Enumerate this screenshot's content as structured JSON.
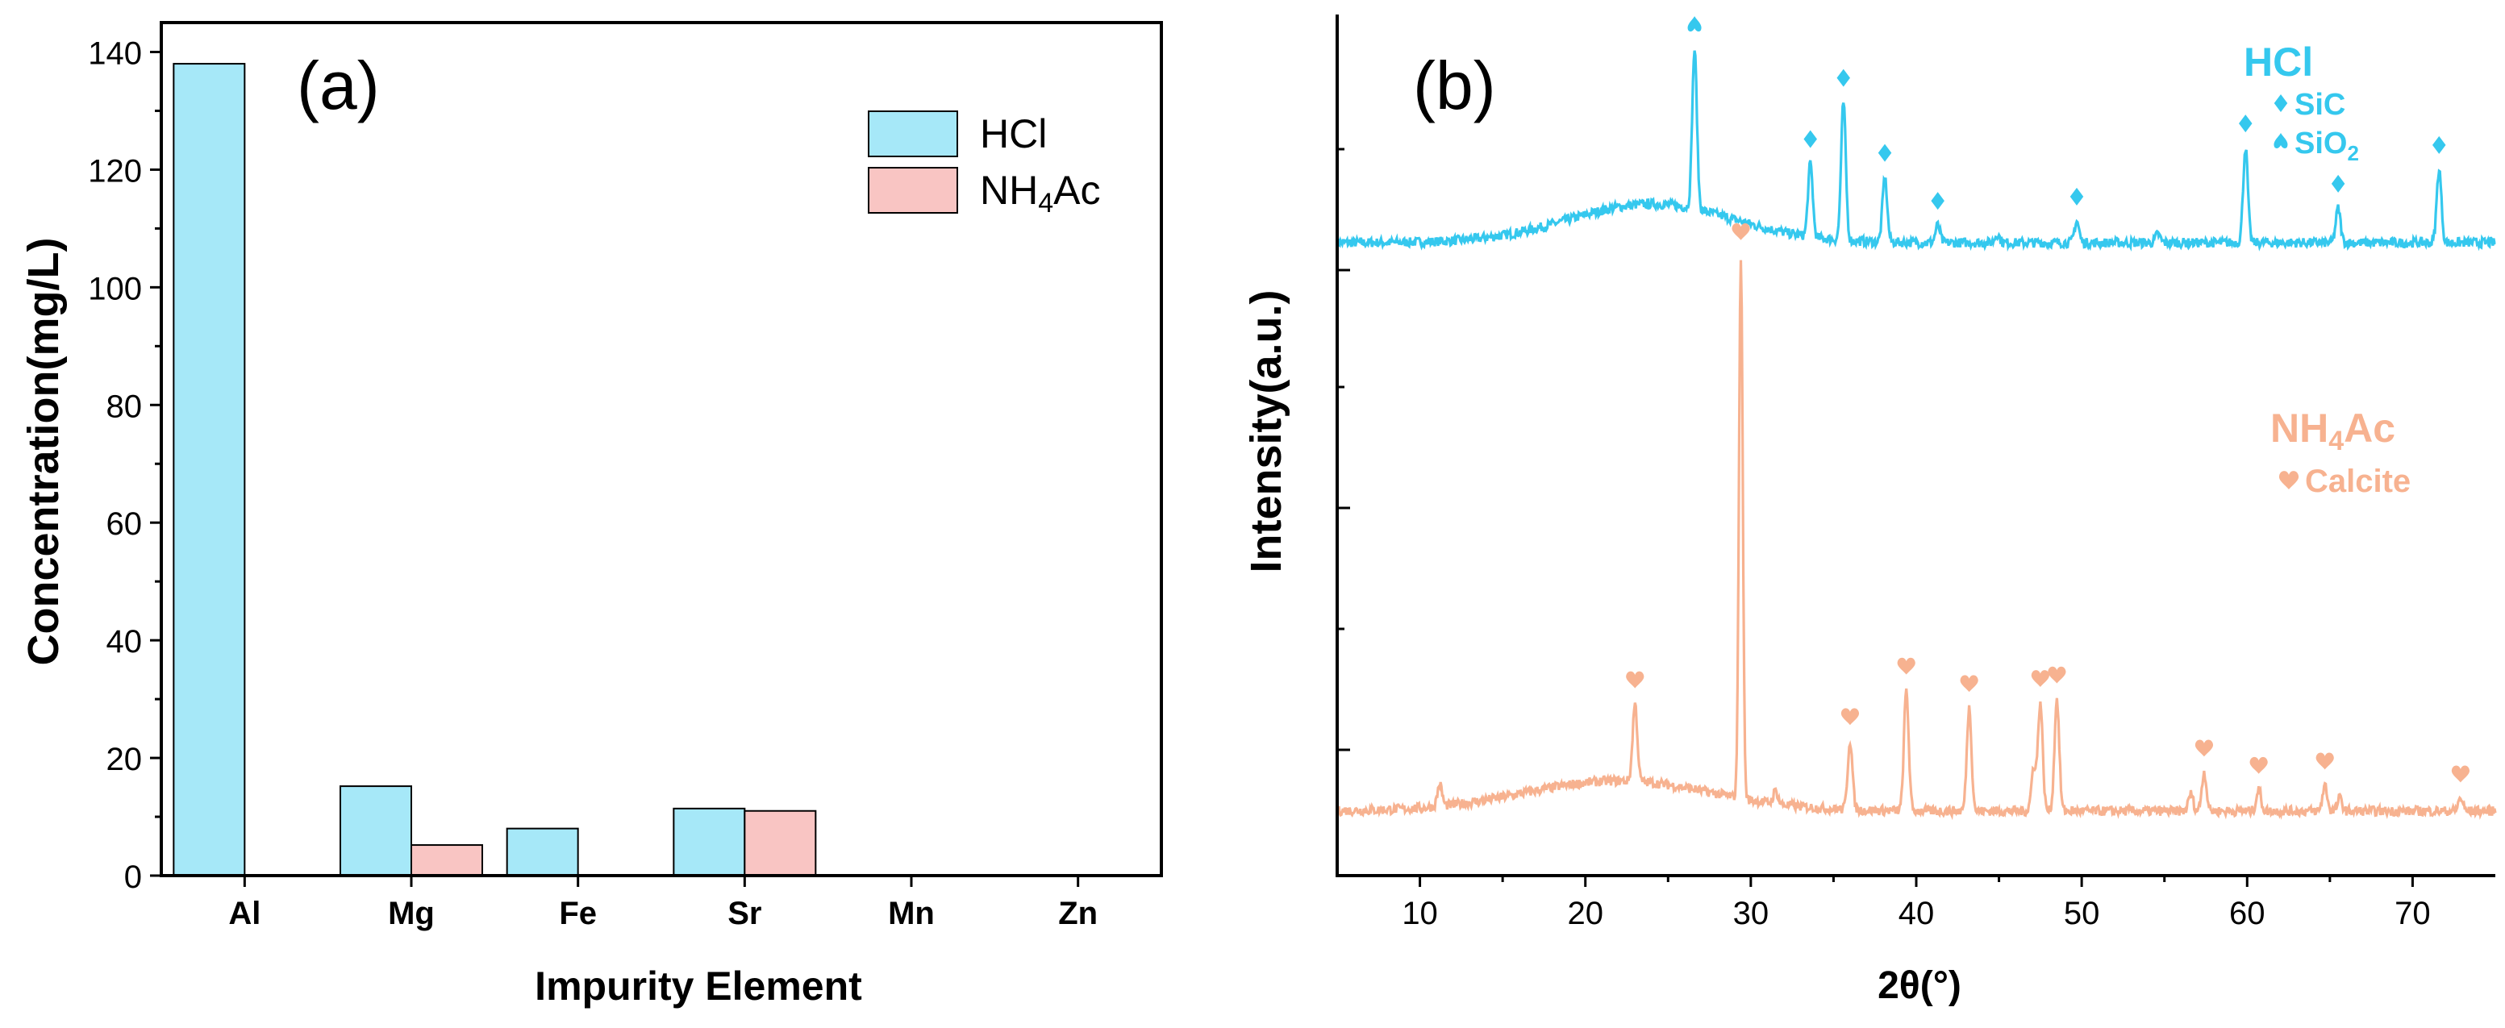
{
  "colors": {
    "hcl": "#35c8ee",
    "hcl_fill": "#a6e8f8",
    "nh4ac": "#f7b290",
    "nh4ac_fill": "#f9c5c3",
    "axis": "#000000"
  },
  "chart_data": [
    {
      "type": "bar",
      "panel_label": "(a)",
      "xlabel": "Impurity Element",
      "ylabel": "Concentration(mg/L)",
      "categories": [
        "Al",
        "Mg",
        "Fe",
        "Sr",
        "Mn",
        "Zn"
      ],
      "ylim": [
        0,
        145
      ],
      "yticks": [
        "0",
        "20",
        "40",
        "60",
        "80",
        "100",
        "120",
        "140"
      ],
      "ytick_values": [
        0,
        20,
        40,
        60,
        80,
        100,
        120,
        140
      ],
      "legend_position": "top-right",
      "series": [
        {
          "name": "HCl",
          "legend_label": "HCl",
          "values": [
            138,
            15.2,
            8,
            11.4,
            0,
            0
          ]
        },
        {
          "name": "NH4Ac",
          "legend_label": "NH",
          "legend_sub": "4",
          "legend_suffix": "Ac",
          "values": [
            0,
            5.2,
            0,
            11,
            0,
            0
          ]
        }
      ]
    },
    {
      "type": "line",
      "panel_label": "(b)",
      "xlabel": "2θ(°)",
      "ylabel": "Intensity(a.u.)",
      "xlim": [
        5,
        75
      ],
      "xticks": [
        "10",
        "20",
        "30",
        "40",
        "50",
        "60",
        "70"
      ],
      "xtick_values": [
        10,
        20,
        30,
        40,
        50,
        60,
        70
      ],
      "series": [
        {
          "name": "HCl",
          "label": "HCl",
          "baseline": 0.735,
          "hump": {
            "center": 24,
            "width": 7,
            "height": 0.045
          },
          "peaks": [
            {
              "x": 26.6,
              "h": 0.185,
              "marker": "spade"
            },
            {
              "x": 33.6,
              "h": 0.085,
              "marker": "diamond"
            },
            {
              "x": 35.6,
              "h": 0.16,
              "marker": "diamond"
            },
            {
              "x": 38.1,
              "h": 0.075,
              "marker": "diamond"
            },
            {
              "x": 41.3,
              "h": 0.02,
              "marker": "diamond"
            },
            {
              "x": 44.9,
              "h": 0.01,
              "marker": null
            },
            {
              "x": 49.7,
              "h": 0.025,
              "marker": "diamond"
            },
            {
              "x": 54.6,
              "h": 0.01,
              "marker": null
            },
            {
              "x": 59.9,
              "h": 0.11,
              "marker": "diamond"
            },
            {
              "x": 65.5,
              "h": 0.04,
              "marker": "diamond"
            },
            {
              "x": 71.6,
              "h": 0.085,
              "marker": "diamond"
            }
          ],
          "legend": [
            {
              "marker": "diamond",
              "text": "SiC"
            },
            {
              "marker": "spade",
              "text": "SiO",
              "sub": "2"
            }
          ]
        },
        {
          "name": "NH4Ac",
          "label_main": "NH",
          "label_sub": "4",
          "label_suffix": "Ac",
          "baseline": 0.075,
          "hump": {
            "center": 22,
            "width": 8,
            "height": 0.035
          },
          "peaks": [
            {
              "x": 11.2,
              "h": 0.025,
              "marker": null
            },
            {
              "x": 23.0,
              "h": 0.09,
              "marker": "heart"
            },
            {
              "x": 29.4,
              "h": 0.63,
              "marker": "heart"
            },
            {
              "x": 31.5,
              "h": 0.015,
              "marker": null
            },
            {
              "x": 36.0,
              "h": 0.08,
              "marker": "heart"
            },
            {
              "x": 39.4,
              "h": 0.14,
              "marker": "heart"
            },
            {
              "x": 43.2,
              "h": 0.12,
              "marker": "heart"
            },
            {
              "x": 47.1,
              "h": 0.05,
              "marker": null
            },
            {
              "x": 47.5,
              "h": 0.125,
              "marker": "heart"
            },
            {
              "x": 48.5,
              "h": 0.13,
              "marker": "heart"
            },
            {
              "x": 56.6,
              "h": 0.02,
              "marker": null
            },
            {
              "x": 57.4,
              "h": 0.045,
              "marker": "heart"
            },
            {
              "x": 60.7,
              "h": 0.025,
              "marker": "heart"
            },
            {
              "x": 64.7,
              "h": 0.03,
              "marker": "heart"
            },
            {
              "x": 65.6,
              "h": 0.015,
              "marker": null
            },
            {
              "x": 72.9,
              "h": 0.015,
              "marker": "heart"
            }
          ],
          "legend": [
            {
              "marker": "heart",
              "text": "Calcite"
            }
          ]
        }
      ]
    }
  ]
}
